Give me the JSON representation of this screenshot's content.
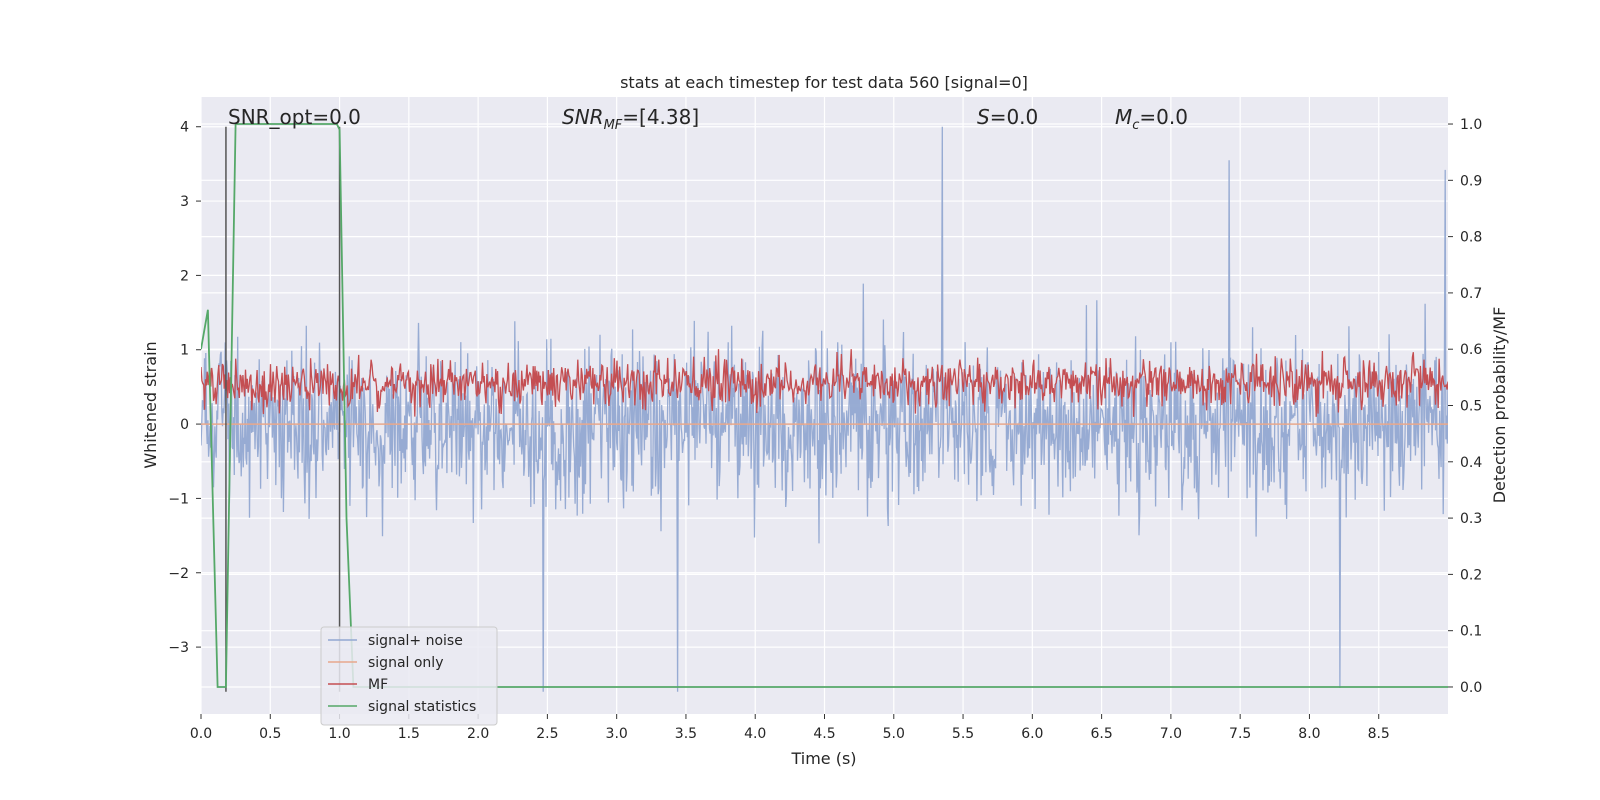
{
  "chart_data": {
    "type": "line",
    "title": "stats at each timestep for test data 560 [signal=0]",
    "xlabel": "Time (s)",
    "ylabel": "Whitened strain",
    "y2label": "Detection probability/MF",
    "xlim": [
      0.0,
      9.0
    ],
    "ylim": [
      -3.9,
      4.4
    ],
    "y2lim": [
      -0.048,
      1.048
    ],
    "x_ticks": [
      "0.0",
      "0.5",
      "1.0",
      "1.5",
      "2.0",
      "2.5",
      "3.0",
      "3.5",
      "4.0",
      "4.5",
      "5.0",
      "5.5",
      "6.0",
      "6.5",
      "7.0",
      "7.5",
      "8.0",
      "8.5"
    ],
    "y_ticks": [
      "4",
      "3",
      "2",
      "1",
      "0",
      "−1",
      "−2",
      "−3"
    ],
    "y2_ticks": [
      "1.0",
      "0.9",
      "0.8",
      "0.7",
      "0.6",
      "0.5",
      "0.4",
      "0.3",
      "0.2",
      "0.1",
      "0.0"
    ],
    "annotations": {
      "snr_opt": "SNR_opt=0.0",
      "snr_mf": "SNR",
      "snr_mf_sub": "MF",
      "snr_mf_val": "=[4.38]",
      "s_label": "S",
      "s_val": "=0.0",
      "mc_label": "M",
      "mc_sub": "c",
      "mc_val": "=0.0"
    },
    "legend_position": "lower-left",
    "grid": true,
    "series": [
      {
        "name": "signal+ noise",
        "color": "#92a8d1",
        "axis": "left",
        "kind": "noise",
        "x_range": [
          0.0,
          9.0
        ],
        "approx_range": [
          -3.6,
          4.0
        ],
        "peaks": [
          {
            "x": 5.35,
            "y": 4.0
          },
          {
            "x": 7.42,
            "y": 3.55
          },
          {
            "x": 8.98,
            "y": 3.42
          },
          {
            "x": 2.47,
            "y": -3.6
          },
          {
            "x": 3.44,
            "y": -3.6
          },
          {
            "x": 8.22,
            "y": -3.55
          }
        ]
      },
      {
        "name": "signal only",
        "color": "#e8a88c",
        "axis": "left",
        "x": [
          0.0,
          9.0
        ],
        "y": [
          0.0,
          0.0
        ]
      },
      {
        "name": "MF",
        "color": "#c44e52",
        "axis": "right",
        "kind": "noise",
        "x_range": [
          0.0,
          9.0
        ],
        "approx_range": [
          0.48,
          0.6
        ]
      },
      {
        "name": "signal statistics",
        "color": "#55a868",
        "axis": "right",
        "x": [
          0.0,
          0.05,
          0.12,
          0.18,
          0.25,
          0.3,
          0.98,
          1.0,
          1.05,
          1.1,
          2.0,
          9.0
        ],
        "y": [
          0.6,
          0.67,
          0.0,
          0.0,
          1.0,
          1.0,
          1.0,
          0.99,
          0.3,
          0.0,
          0.0,
          0.0
        ]
      }
    ],
    "vlines": [
      {
        "x": 0.18,
        "color": "#555555"
      },
      {
        "x": 1.0,
        "color": "#555555"
      }
    ]
  }
}
